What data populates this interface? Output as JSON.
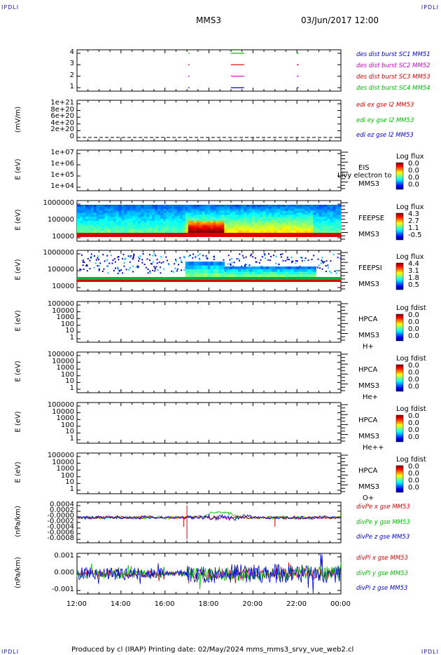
{
  "corners": {
    "top_left": "IPDLI",
    "top_right": "IPDLI",
    "bottom_left": "IPDLI",
    "bottom_right": "IPDLI"
  },
  "header": {
    "spacecraft": "MMS3",
    "date": "03/Jun/2017 12:00"
  },
  "footer": {
    "text": "Produced by cl (IRAP)   Printing date: 02/May/2024   mms_mms3_srvy_vue_web2.cl"
  },
  "time_axis": {
    "ticks": [
      "12:00",
      "14:00",
      "16:00",
      "18:00",
      "20:00",
      "22:00",
      "00:00"
    ]
  },
  "colors": {
    "red": "#dd0000",
    "green": "#00c000",
    "blue": "#0000dd",
    "magenta": "#cc00cc",
    "corner": "#1a1aa8"
  },
  "chart_data": [
    {
      "type": "line",
      "name": "burst intervals",
      "ylim": [
        0.5,
        4.5
      ],
      "yticks": [
        "4",
        "3",
        "2",
        "1"
      ],
      "legend": [
        {
          "text": "des dist burst SC1 MM51",
          "color": "#0000dd"
        },
        {
          "text": "des dist burst SC2 MM52",
          "color": "#cc00cc"
        },
        {
          "text": "des dist burst SC3 MM53",
          "color": "#dd0000"
        },
        {
          "text": "des dist burst SC4 MM54",
          "color": "#00c000"
        }
      ],
      "intervals_hours": [
        [
          17.05,
          17.1
        ],
        [
          19.0,
          19.6
        ],
        [
          22.0,
          22.08
        ]
      ]
    },
    {
      "type": "line",
      "ylabel": "(mV/m)",
      "yticks": [
        "1e+21",
        "8e+20",
        "6e+20",
        "4e+20",
        "2e+20",
        "0"
      ],
      "legend": [
        {
          "text": "edi ex gse l2 MM53",
          "color": "#dd0000"
        },
        {
          "text": "edi ey gse l2 MM53",
          "color": "#00c000"
        },
        {
          "text": "edi ez gse l2 MM53",
          "color": "#0000dd"
        }
      ]
    },
    {
      "type": "heatmap",
      "ylabel": "E (eV)",
      "yticks": [
        "1e+07",
        "1e+06",
        "1e+05",
        "1e+04"
      ],
      "side": [
        "EIS",
        "MMS3"
      ],
      "overlap_text": "Llvy electron to",
      "colorbar_title": "Log flux",
      "colorbar_ticks": [
        "0.0",
        "0.0",
        "0.0",
        "0.0"
      ]
    },
    {
      "type": "heatmap",
      "ylabel": "E (eV)",
      "yticks": [
        "1000000",
        "100000",
        "10000"
      ],
      "side": [
        "FEEPSE",
        "MMS3"
      ],
      "colorbar_title": "Log flux",
      "colorbar_ticks": [
        "4.3",
        "2.7",
        "1.1",
        "-0.5"
      ]
    },
    {
      "type": "heatmap",
      "ylabel": "E (eV)",
      "yticks": [
        "1000000",
        "100000",
        "10000"
      ],
      "side": [
        "FEEPSI",
        "MMS3"
      ],
      "colorbar_title": "Log flux",
      "colorbar_ticks": [
        "4.4",
        "3.1",
        "1.8",
        "0.5"
      ]
    },
    {
      "type": "heatmap",
      "ylabel": "E (eV)",
      "yticks": [
        "100000",
        "10000",
        "1000",
        "100",
        "10",
        "1"
      ],
      "side": [
        "HPCA",
        "MMS3",
        "H+"
      ],
      "colorbar_title": "Log fdist",
      "colorbar_ticks": [
        "0.0",
        "0.0",
        "0.0",
        "0.0"
      ]
    },
    {
      "type": "heatmap",
      "ylabel": "E (eV)",
      "yticks": [
        "100000",
        "10000",
        "1000",
        "100",
        "10",
        "1"
      ],
      "side": [
        "HPCA",
        "MMS3",
        "He+"
      ],
      "colorbar_title": "Log fdist",
      "colorbar_ticks": [
        "0.0",
        "0.0",
        "0.0",
        "0.0"
      ]
    },
    {
      "type": "heatmap",
      "ylabel": "E (eV)",
      "yticks": [
        "100000",
        "10000",
        "1000",
        "100",
        "10",
        "1"
      ],
      "side": [
        "HPCA",
        "MMS3",
        "He++"
      ],
      "colorbar_title": "Log fdist",
      "colorbar_ticks": [
        "0.0",
        "0.0",
        "0.0",
        "0.0"
      ]
    },
    {
      "type": "heatmap",
      "ylabel": "E (eV)",
      "yticks": [
        "100000",
        "10000",
        "1000",
        "100",
        "10",
        "1"
      ],
      "side": [
        "HPCA",
        "MMS3",
        "O+"
      ],
      "colorbar_title": "Log fdist",
      "colorbar_ticks": [
        "0.0",
        "0.0",
        "0.0",
        "0.0"
      ]
    },
    {
      "type": "line",
      "ylabel": "(nPa/km)",
      "yticks": [
        "0.0004",
        "0.0002",
        "-0.0000",
        "-0.0002",
        "-0.0004",
        "-0.0006",
        "-0.0008"
      ],
      "legend": [
        {
          "text": "divPe x gse MM53",
          "color": "#dd0000"
        },
        {
          "text": "divPe y gse MM53",
          "color": "#00c000"
        },
        {
          "text": "divPe z gse MM53",
          "color": "#0000dd"
        }
      ]
    },
    {
      "type": "line",
      "ylabel": "(nPa/km)",
      "yticks": [
        "0.001",
        "0.000",
        "-0.001"
      ],
      "legend": [
        {
          "text": "divPi x gse MM53",
          "color": "#dd0000"
        },
        {
          "text": "divPi y gse MM53",
          "color": "#00c000"
        },
        {
          "text": "divPi z gse MM53",
          "color": "#0000dd"
        }
      ]
    }
  ]
}
